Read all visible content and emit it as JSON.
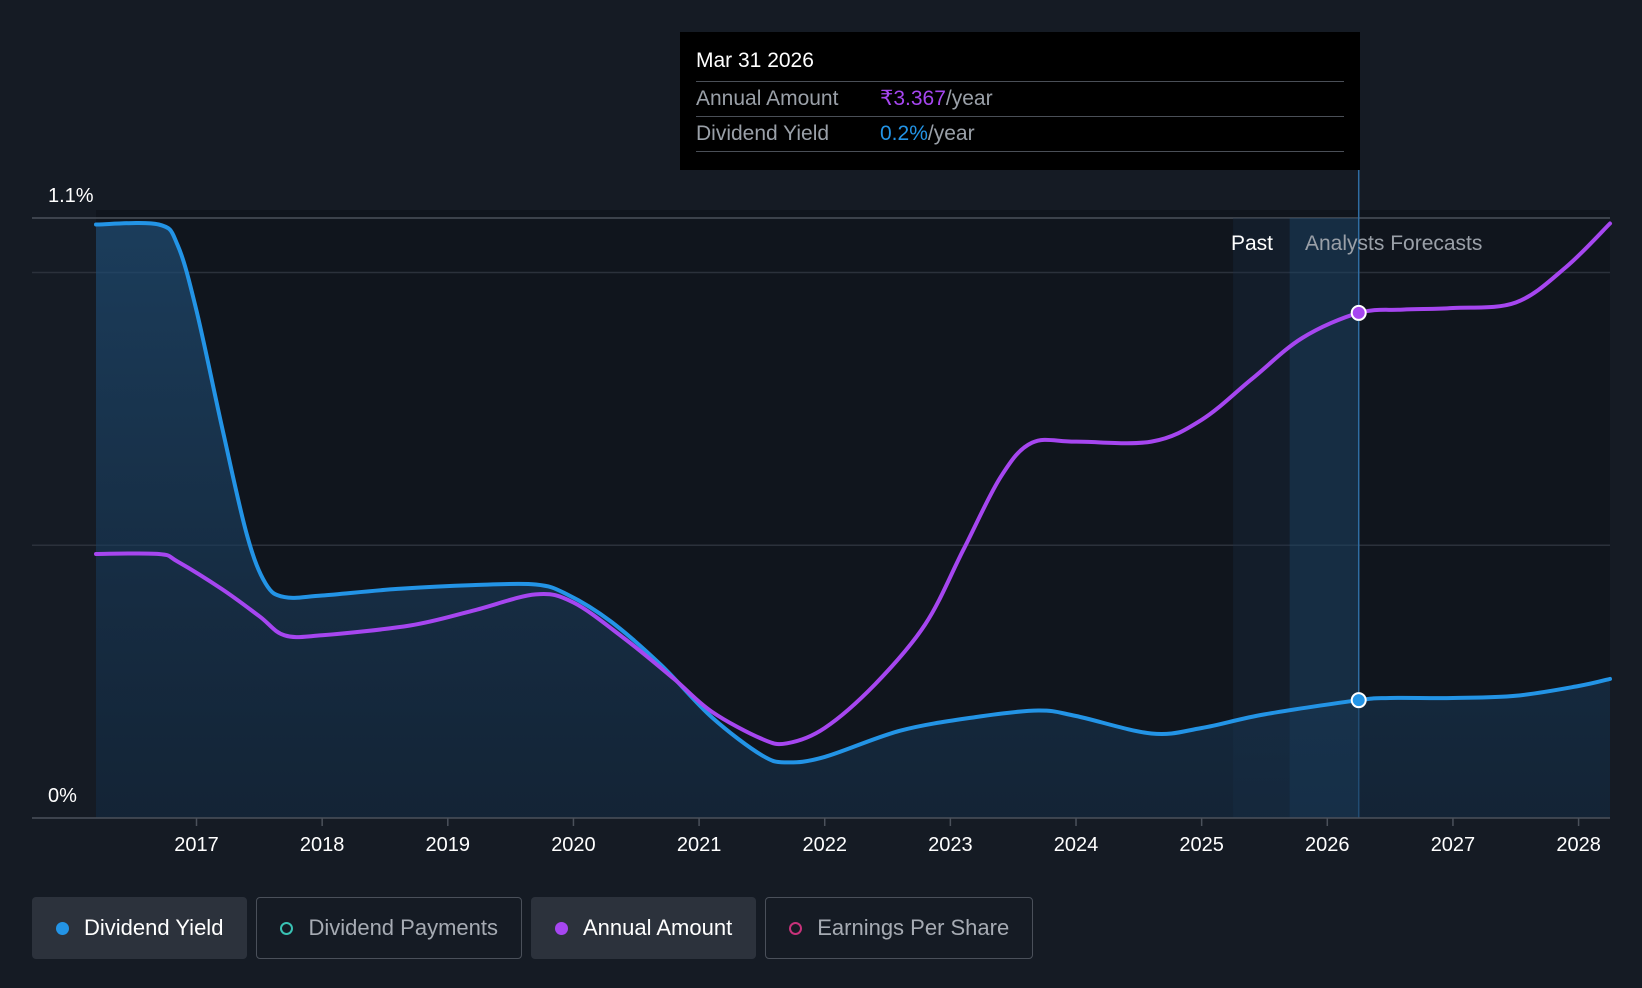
{
  "tooltip": {
    "date": "Mar 31 2026",
    "annual_label": "Annual Amount",
    "annual_value": "₹3.367",
    "yield_label": "Dividend Yield",
    "yield_value": "0.2%",
    "unit": "/year"
  },
  "colors": {
    "yield": "#2394e6",
    "annual": "#a646f0",
    "payments": "#39c2b4",
    "eps": "#c7327a",
    "background": "#151b24"
  },
  "legend": [
    {
      "label": "Dividend Yield",
      "active": true,
      "color": "#2394e6",
      "filled": true,
      "icon": "filled-dot-icon"
    },
    {
      "label": "Dividend Payments",
      "active": false,
      "color": "#39c2b4",
      "filled": false,
      "icon": "hollow-dot-icon"
    },
    {
      "label": "Annual Amount",
      "active": true,
      "color": "#a646f0",
      "filled": true,
      "icon": "filled-dot-icon"
    },
    {
      "label": "Earnings Per Share",
      "active": false,
      "color": "#c7327a",
      "filled": false,
      "icon": "hollow-dot-icon"
    }
  ],
  "chart_data": {
    "type": "line",
    "title": "",
    "xlabel": "",
    "ylabel": "",
    "y_tick_labels": [
      "1.1%",
      "0%"
    ],
    "ylim": [
      0,
      1.1
    ],
    "xlim": [
      2016.2,
      2028.25
    ],
    "x_ticks": [
      2017,
      2018,
      2019,
      2020,
      2021,
      2022,
      2023,
      2024,
      2025,
      2026,
      2027,
      2028
    ],
    "past_label": "Past",
    "forecast_label": "Analysts Forecasts",
    "past_region_start": 2025.25,
    "forecast_start": 2025.7,
    "highlight_x": 2026.25,
    "grid": true,
    "series": [
      {
        "name": "Dividend Yield",
        "unit": "%",
        "points": [
          [
            2016.2,
            1.088
          ],
          [
            2016.7,
            1.088
          ],
          [
            2016.85,
            1.05
          ],
          [
            2017.0,
            0.93
          ],
          [
            2017.2,
            0.72
          ],
          [
            2017.4,
            0.52
          ],
          [
            2017.55,
            0.43
          ],
          [
            2017.7,
            0.405
          ],
          [
            2018.0,
            0.408
          ],
          [
            2018.6,
            0.42
          ],
          [
            2019.2,
            0.427
          ],
          [
            2019.7,
            0.428
          ],
          [
            2019.95,
            0.41
          ],
          [
            2020.3,
            0.36
          ],
          [
            2020.7,
            0.28
          ],
          [
            2021.1,
            0.185
          ],
          [
            2021.5,
            0.115
          ],
          [
            2021.7,
            0.102
          ],
          [
            2022.0,
            0.112
          ],
          [
            2022.6,
            0.16
          ],
          [
            2023.2,
            0.185
          ],
          [
            2023.7,
            0.197
          ],
          [
            2024.0,
            0.187
          ],
          [
            2024.6,
            0.155
          ],
          [
            2025.0,
            0.165
          ],
          [
            2025.5,
            0.19
          ],
          [
            2026.25,
            0.216
          ],
          [
            2026.5,
            0.22
          ],
          [
            2027.0,
            0.22
          ],
          [
            2027.5,
            0.224
          ],
          [
            2028.0,
            0.242
          ],
          [
            2028.25,
            0.255
          ]
        ]
      },
      {
        "name": "Annual Amount",
        "unit": "₹",
        "points": [
          [
            2016.2,
            0.484
          ],
          [
            2016.7,
            0.484
          ],
          [
            2016.85,
            0.47
          ],
          [
            2017.2,
            0.42
          ],
          [
            2017.5,
            0.37
          ],
          [
            2017.7,
            0.335
          ],
          [
            2018.0,
            0.335
          ],
          [
            2018.7,
            0.353
          ],
          [
            2019.2,
            0.38
          ],
          [
            2019.7,
            0.41
          ],
          [
            2020.0,
            0.395
          ],
          [
            2020.4,
            0.33
          ],
          [
            2020.8,
            0.255
          ],
          [
            2021.1,
            0.195
          ],
          [
            2021.5,
            0.145
          ],
          [
            2021.7,
            0.137
          ],
          [
            2022.0,
            0.165
          ],
          [
            2022.4,
            0.245
          ],
          [
            2022.8,
            0.355
          ],
          [
            2023.1,
            0.49
          ],
          [
            2023.4,
            0.625
          ],
          [
            2023.65,
            0.688
          ],
          [
            2024.0,
            0.69
          ],
          [
            2024.6,
            0.69
          ],
          [
            2025.0,
            0.73
          ],
          [
            2025.4,
            0.805
          ],
          [
            2025.8,
            0.88
          ],
          [
            2026.25,
            0.926
          ],
          [
            2026.6,
            0.932
          ],
          [
            2027.0,
            0.935
          ],
          [
            2027.5,
            0.945
          ],
          [
            2027.9,
            1.01
          ],
          [
            2028.25,
            1.09
          ]
        ]
      }
    ]
  }
}
